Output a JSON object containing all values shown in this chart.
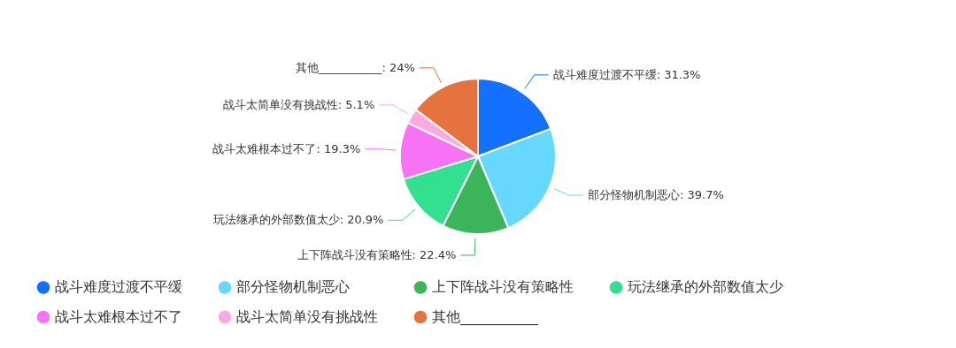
{
  "chart_data": {
    "type": "pie",
    "categories": [
      "战斗难度过渡不平缓",
      "部分怪物机制恶心",
      "上下阵战斗没有策略性",
      "玩法继承的外部数值太少",
      "战斗太难根本过不了",
      "战斗太简单没有挑战性",
      "其他___________"
    ],
    "values": [
      31.3,
      39.7,
      22.4,
      20.9,
      19.3,
      5.1,
      24
    ],
    "value_labels": [
      ": 31.3%",
      ": 39.7%",
      ": 22.4%",
      ": 20.9%",
      ": 19.3%",
      ": 5.1%",
      ": 24%"
    ],
    "colors": [
      "#1470ff",
      "#66d8ff",
      "#3cb45a",
      "#33e08f",
      "#f872f5",
      "#fba8e3",
      "#e5723f"
    ],
    "legend": "bottom"
  }
}
